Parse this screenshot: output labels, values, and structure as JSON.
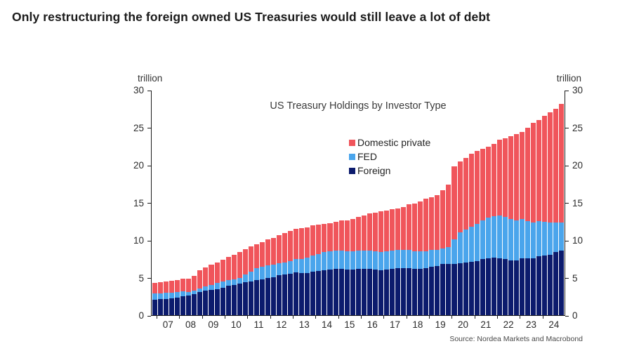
{
  "page": {
    "headline": "Only restructuring the foreign owned US Treasuries would still leave a lot of debt",
    "source": "Source: Nordea Markets and Macrobond"
  },
  "chart_data": {
    "type": "bar",
    "stacked": true,
    "title": "US Treasury Holdings by Investor Type",
    "unit_label": "trillion",
    "ylim": [
      0,
      30
    ],
    "yticks": [
      0,
      5,
      10,
      15,
      20,
      25,
      30
    ],
    "grid": false,
    "legend_position": "inside-upper-middle",
    "legend_order": [
      "Domestic private",
      "FED",
      "Foreign"
    ],
    "frequency": "quarterly",
    "x_start": "2006 Q4",
    "x_offset_bars": 1,
    "x_tick_labels": [
      "07",
      "08",
      "09",
      "10",
      "11",
      "12",
      "13",
      "14",
      "15",
      "16",
      "17",
      "18",
      "19",
      "20",
      "21",
      "22",
      "23",
      "24"
    ],
    "series": [
      {
        "name": "Foreign",
        "color": "#0c1b6d",
        "values": [
          2.1,
          2.15,
          2.2,
          2.25,
          2.35,
          2.5,
          2.6,
          2.8,
          3.1,
          3.3,
          3.4,
          3.5,
          3.7,
          3.9,
          4.0,
          4.2,
          4.4,
          4.5,
          4.7,
          4.8,
          5.0,
          5.1,
          5.3,
          5.4,
          5.55,
          5.7,
          5.6,
          5.65,
          5.8,
          5.9,
          6.0,
          6.05,
          6.15,
          6.2,
          6.1,
          6.1,
          6.15,
          6.2,
          6.2,
          6.1,
          6.0,
          6.1,
          6.2,
          6.3,
          6.3,
          6.3,
          6.2,
          6.2,
          6.3,
          6.5,
          6.6,
          6.8,
          6.8,
          6.8,
          6.9,
          7.0,
          7.1,
          7.2,
          7.5,
          7.6,
          7.7,
          7.6,
          7.5,
          7.3,
          7.3,
          7.6,
          7.6,
          7.6,
          7.9,
          8.0,
          8.1,
          8.4,
          8.6
        ]
      },
      {
        "name": "FED",
        "color": "#4aa5ec",
        "values": [
          0.78,
          0.78,
          0.79,
          0.78,
          0.75,
          0.7,
          0.48,
          0.48,
          0.48,
          0.5,
          0.65,
          0.77,
          0.78,
          0.78,
          0.78,
          0.81,
          1.0,
          1.3,
          1.6,
          1.65,
          1.66,
          1.66,
          1.66,
          1.65,
          1.66,
          1.8,
          1.9,
          2.0,
          2.2,
          2.3,
          2.4,
          2.45,
          2.46,
          2.46,
          2.46,
          2.46,
          2.46,
          2.46,
          2.46,
          2.46,
          2.46,
          2.46,
          2.46,
          2.45,
          2.45,
          2.4,
          2.35,
          2.3,
          2.25,
          2.2,
          2.1,
          2.1,
          2.3,
          3.3,
          4.2,
          4.4,
          4.7,
          5.0,
          5.2,
          5.4,
          5.5,
          5.7,
          5.6,
          5.5,
          5.4,
          5.2,
          5.0,
          4.8,
          4.7,
          4.5,
          4.3,
          4.0,
          3.8
        ]
      },
      {
        "name": "Domestic private",
        "color": "#f0555b",
        "values": [
          1.4,
          1.45,
          1.5,
          1.55,
          1.6,
          1.7,
          1.8,
          1.95,
          2.4,
          2.6,
          2.7,
          2.8,
          2.95,
          3.1,
          3.3,
          3.4,
          3.4,
          3.4,
          3.2,
          3.3,
          3.45,
          3.6,
          3.75,
          3.9,
          4.05,
          4.0,
          4.1,
          4.1,
          4.0,
          3.9,
          3.8,
          3.8,
          3.9,
          4.0,
          4.1,
          4.3,
          4.5,
          4.7,
          4.9,
          5.1,
          5.4,
          5.4,
          5.5,
          5.5,
          5.7,
          6.1,
          6.4,
          6.7,
          7.0,
          7.1,
          7.3,
          7.8,
          8.3,
          9.8,
          9.4,
          9.6,
          9.8,
          9.7,
          9.5,
          9.5,
          9.7,
          10.1,
          10.5,
          11.1,
          11.5,
          11.7,
          12.4,
          13.3,
          13.5,
          14.1,
          14.7,
          15.2,
          15.8
        ]
      }
    ]
  }
}
